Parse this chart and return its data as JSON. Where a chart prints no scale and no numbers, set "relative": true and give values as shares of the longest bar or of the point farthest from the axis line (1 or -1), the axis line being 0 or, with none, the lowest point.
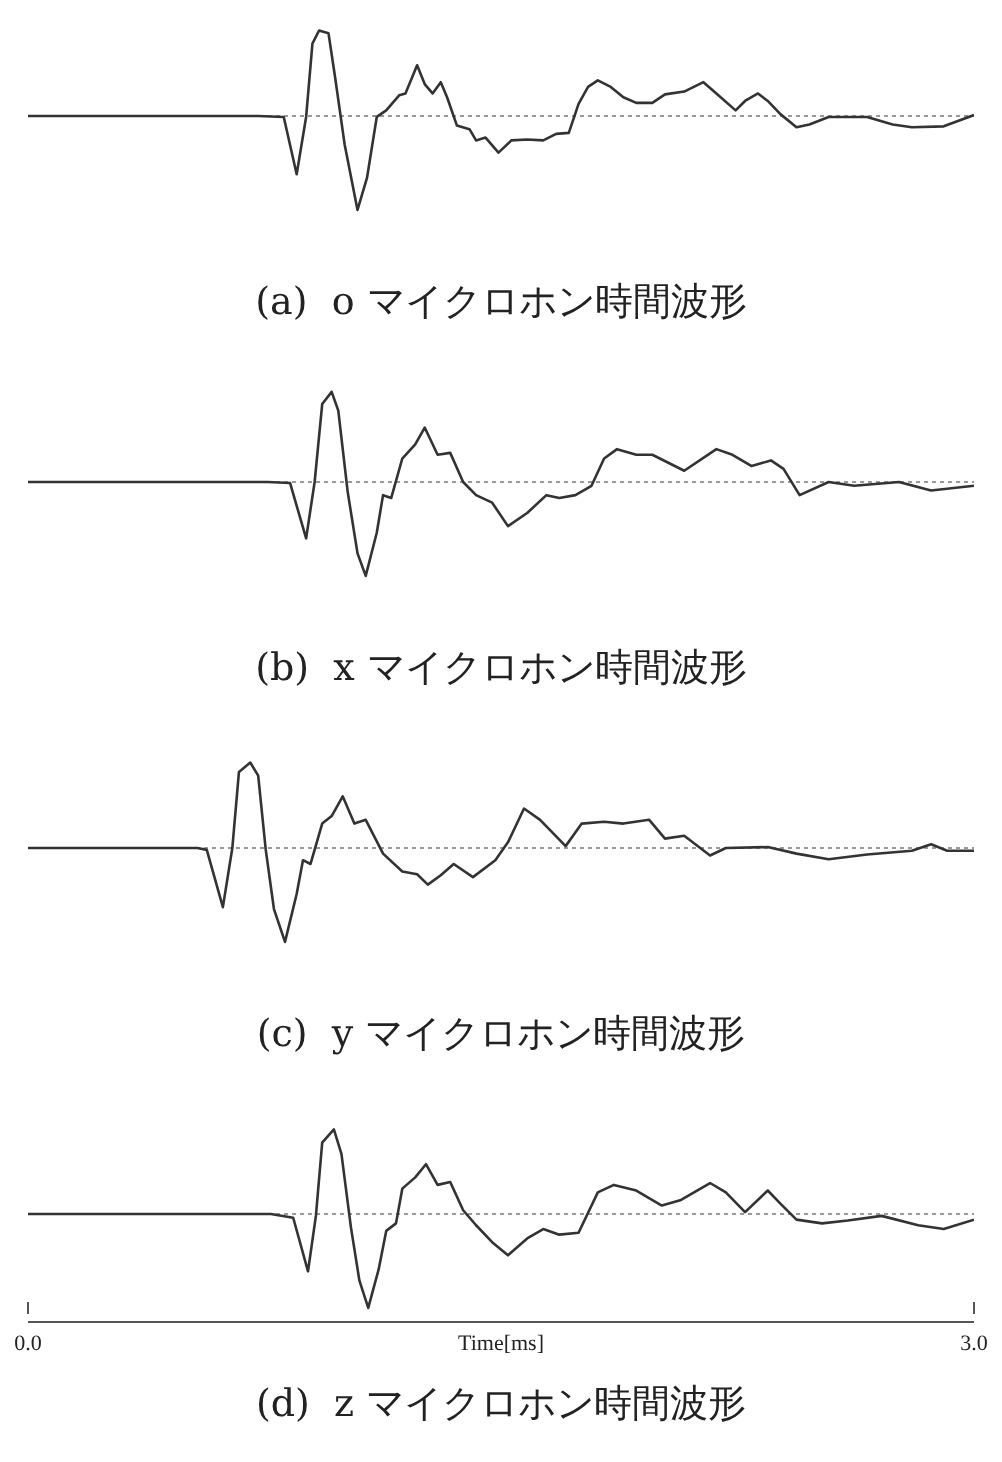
{
  "chart_data": [
    {
      "type": "line",
      "title": "(a)  o マイクロホン時間波形",
      "relative": true,
      "xlim": [
        0,
        3
      ],
      "tick_labels": false,
      "ref_lines": [
        {
          "axis": "y",
          "value": 0,
          "color": "#999999",
          "line_style": "dotted"
        }
      ],
      "x": [
        0,
        0.73,
        0.811,
        0.852,
        0.882,
        0.902,
        0.923,
        0.953,
        0.974,
        1.004,
        1.045,
        1.075,
        1.106,
        1.136,
        1.177,
        1.197,
        1.234,
        1.258,
        1.283,
        1.309,
        1.329,
        1.36,
        1.4,
        1.421,
        1.451,
        1.492,
        1.533,
        1.583,
        1.634,
        1.675,
        1.715,
        1.746,
        1.776,
        1.807,
        1.848,
        1.888,
        1.929,
        1.98,
        2.02,
        2.081,
        2.142,
        2.183,
        2.244,
        2.274,
        2.315,
        2.346,
        2.386,
        2.437,
        2.478,
        2.539,
        2.661,
        2.742,
        2.803,
        2.904,
        3.0
      ],
      "series": [
        {
          "color": "#333333",
          "values": [
            0,
            0,
            -0.01,
            -0.62,
            -0.01,
            0.77,
            0.91,
            0.88,
            0.41,
            -0.3,
            -1.0,
            -0.66,
            -0.01,
            0.06,
            0.22,
            0.24,
            0.54,
            0.34,
            0.24,
            0.36,
            0.2,
            -0.1,
            -0.14,
            -0.26,
            -0.23,
            -0.39,
            -0.26,
            -0.25,
            -0.26,
            -0.19,
            -0.18,
            0.13,
            0.31,
            0.38,
            0.31,
            0.2,
            0.14,
            0.14,
            0.23,
            0.26,
            0.36,
            0.24,
            0.06,
            0.16,
            0.24,
            0.16,
            0.02,
            -0.12,
            -0.09,
            -0.01,
            -0.01,
            -0.09,
            -0.12,
            -0.11,
            0.01
          ]
        }
      ]
    },
    {
      "type": "line",
      "title": "(b)  x マイクロホン時間波形",
      "relative": true,
      "xlim": [
        0,
        3
      ],
      "tick_labels": false,
      "ref_lines": [
        {
          "axis": "y",
          "value": 0,
          "color": "#999999",
          "line_style": "dotted"
        }
      ],
      "x": [
        0,
        0.76,
        0.831,
        0.882,
        0.909,
        0.933,
        0.963,
        0.984,
        1.014,
        1.045,
        1.071,
        1.106,
        1.126,
        1.152,
        1.187,
        1.228,
        1.258,
        1.299,
        1.339,
        1.38,
        1.421,
        1.472,
        1.522,
        1.583,
        1.644,
        1.685,
        1.736,
        1.787,
        1.827,
        1.868,
        1.929,
        1.98,
        2.081,
        2.183,
        2.234,
        2.295,
        2.356,
        2.396,
        2.447,
        2.539,
        2.62,
        2.762,
        2.864,
        3.0
      ],
      "series": [
        {
          "color": "#333333",
          "values": [
            0,
            0,
            -0.01,
            -0.6,
            0,
            0.83,
            0.96,
            0.76,
            -0.11,
            -0.76,
            -1.0,
            -0.54,
            -0.14,
            -0.17,
            0.25,
            0.4,
            0.58,
            0.29,
            0.31,
            0,
            -0.14,
            -0.22,
            -0.47,
            -0.33,
            -0.14,
            -0.17,
            -0.14,
            -0.04,
            0.25,
            0.35,
            0.29,
            0.29,
            0.12,
            0.35,
            0.29,
            0.17,
            0.23,
            0.14,
            -0.14,
            0,
            -0.04,
            0,
            -0.09,
            -0.04
          ]
        }
      ]
    },
    {
      "type": "line",
      "title": "(c)  y マイクロホン時間波形",
      "relative": true,
      "xlim": [
        0,
        3
      ],
      "tick_labels": false,
      "ref_lines": [
        {
          "axis": "y",
          "value": 0,
          "color": "#999999",
          "line_style": "dotted"
        }
      ],
      "x": [
        0,
        0.537,
        0.567,
        0.618,
        0.648,
        0.669,
        0.705,
        0.73,
        0.754,
        0.78,
        0.815,
        0.852,
        0.872,
        0.896,
        0.933,
        0.963,
        0.998,
        1.035,
        1.071,
        1.126,
        1.187,
        1.234,
        1.268,
        1.309,
        1.35,
        1.411,
        1.482,
        1.522,
        1.573,
        1.624,
        1.705,
        1.756,
        1.827,
        1.888,
        1.97,
        2.02,
        2.081,
        2.163,
        2.213,
        2.346,
        2.437,
        2.539,
        2.661,
        2.803,
        2.864,
        2.915,
        3.0
      ],
      "series": [
        {
          "color": "#333333",
          "values": [
            0,
            0,
            -0.02,
            -0.63,
            0,
            0.81,
            0.91,
            0.77,
            -0.02,
            -0.65,
            -1.0,
            -0.49,
            -0.13,
            -0.17,
            0.26,
            0.34,
            0.55,
            0.26,
            0.3,
            -0.06,
            -0.25,
            -0.28,
            -0.39,
            -0.29,
            -0.17,
            -0.31,
            -0.13,
            0.06,
            0.42,
            0.3,
            0.02,
            0.26,
            0.28,
            0.26,
            0.3,
            0.1,
            0.13,
            -0.08,
            0,
            0.01,
            -0.06,
            -0.12,
            -0.07,
            -0.03,
            0.04,
            -0.03,
            -0.03
          ]
        }
      ]
    },
    {
      "type": "line",
      "title": "(d)  z マイクロホン時間波形",
      "relative": true,
      "xlim": [
        0,
        3
      ],
      "xticks": [
        {
          "value": 0,
          "label": "0.0"
        },
        {
          "value": 3,
          "label": "3.0"
        }
      ],
      "xlabel": "Time[ms]",
      "tick_labels": "x",
      "ref_lines": [
        {
          "axis": "y",
          "value": 0,
          "color": "#999999",
          "line_style": "dotted"
        }
      ],
      "x": [
        0,
        0.77,
        0.841,
        0.888,
        0.913,
        0.933,
        0.97,
        0.994,
        1.024,
        1.051,
        1.079,
        1.112,
        1.136,
        1.167,
        1.187,
        1.228,
        1.262,
        1.299,
        1.339,
        1.38,
        1.421,
        1.472,
        1.522,
        1.583,
        1.634,
        1.685,
        1.746,
        1.807,
        1.858,
        1.929,
        2.01,
        2.071,
        2.163,
        2.213,
        2.274,
        2.346,
        2.386,
        2.437,
        2.518,
        2.6,
        2.707,
        2.823,
        2.904,
        3.0
      ],
      "series": [
        {
          "color": "#333333",
          "values": [
            0,
            0,
            -0.04,
            -0.61,
            -0.02,
            0.76,
            0.9,
            0.64,
            -0.14,
            -0.71,
            -1.0,
            -0.59,
            -0.18,
            -0.1,
            0.27,
            0.39,
            0.53,
            0.31,
            0.34,
            0.04,
            -0.12,
            -0.3,
            -0.44,
            -0.26,
            -0.16,
            -0.22,
            -0.2,
            0.23,
            0.31,
            0.25,
            0.09,
            0.15,
            0.33,
            0.23,
            0.02,
            0.25,
            0.11,
            -0.06,
            -0.1,
            -0.07,
            -0.02,
            -0.12,
            -0.16,
            -0.06
          ]
        }
      ]
    }
  ]
}
